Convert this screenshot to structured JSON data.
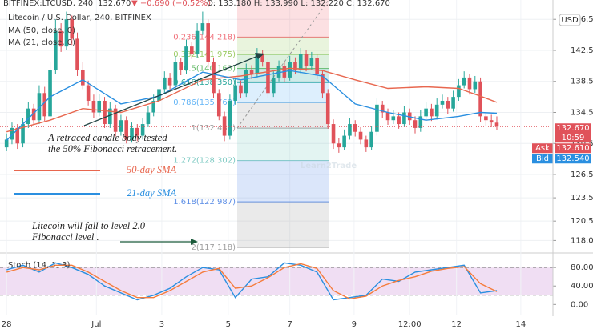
{
  "chart_data": [
    {
      "type": "candlestick",
      "header": [
        "BITFINEX:LTCUSD, 240",
        "132.670",
        "▼ −0.690 (−0.52%)",
        "O: 133.180 H: 133.990 L: 132.220 C: 132.670"
      ],
      "title": "Litecoin / U.S. Dollar, 240, BITFINEX",
      "y_unit": "USD",
      "xlim": [
        -1.2,
        100.3
      ],
      "ylim": [
        116.7,
        149
      ],
      "yticks": [
        {
          "value": 118,
          "label": "118.000"
        },
        {
          "value": 120.5,
          "label": "120.500"
        },
        {
          "value": 123.5,
          "label": "123.500"
        },
        {
          "value": 126.5,
          "label": "126.500"
        },
        {
          "value": 130.5,
          "label": "130.500"
        },
        {
          "value": 134.5,
          "label": "134.500"
        },
        {
          "value": 138.5,
          "label": "138.500"
        },
        {
          "value": 142.5,
          "label": "142.500"
        },
        {
          "value": 146.5,
          "label": "146.500"
        }
      ],
      "grid": true,
      "up_color": "#26a69a",
      "down_color": "#e0525a",
      "x": [
        0,
        1,
        2,
        3,
        4,
        5,
        6,
        7,
        8,
        9,
        10,
        11,
        12,
        13,
        14,
        15,
        16,
        17,
        18,
        19,
        20,
        21,
        22,
        23,
        24,
        25,
        26,
        27,
        28,
        29,
        30,
        31,
        32,
        33,
        34,
        35,
        36,
        37,
        38,
        39,
        40,
        41,
        42,
        43,
        44,
        45,
        46,
        47,
        48,
        49,
        50,
        51,
        52,
        53,
        54,
        55,
        56,
        57,
        58,
        59,
        60,
        61,
        62,
        63,
        64,
        65,
        66,
        67,
        68,
        69,
        70,
        71,
        72,
        73,
        74,
        75,
        76,
        77,
        78,
        79,
        80,
        81,
        82,
        83,
        84,
        85,
        86,
        87,
        88,
        89,
        90
      ],
      "candles": [
        [
          130,
          131.8,
          129.5,
          131
        ],
        [
          131,
          133.2,
          130.4,
          132.5
        ],
        [
          132.5,
          133,
          129.8,
          130.5
        ],
        [
          130.5,
          133.8,
          130,
          133
        ],
        [
          133,
          135.8,
          132.5,
          135
        ],
        [
          135,
          135.6,
          133,
          133.5
        ],
        [
          133.5,
          138,
          133,
          137
        ],
        [
          137,
          137.8,
          133.4,
          134
        ],
        [
          134,
          141,
          133.5,
          140
        ],
        [
          140,
          146.5,
          139.5,
          145
        ],
        [
          145,
          146,
          142.3,
          143
        ],
        [
          143,
          147.5,
          142.5,
          146.5
        ],
        [
          146.5,
          147,
          143.2,
          144
        ],
        [
          144,
          144.8,
          139.2,
          140
        ],
        [
          140,
          141,
          137.5,
          138
        ],
        [
          138,
          138.6,
          135.4,
          136
        ],
        [
          136,
          136.8,
          133.8,
          134.5
        ],
        [
          134.5,
          136.9,
          134,
          136
        ],
        [
          136,
          136.5,
          132.5,
          133
        ],
        [
          133,
          135.8,
          132.5,
          135
        ],
        [
          135,
          135.5,
          131.4,
          132
        ],
        [
          132,
          134.2,
          131.5,
          133.5
        ],
        [
          133.5,
          134,
          130.5,
          131
        ],
        [
          131,
          133.2,
          130.6,
          132.5
        ],
        [
          132.5,
          133,
          130.8,
          131.5
        ],
        [
          131.5,
          133.8,
          131,
          133
        ],
        [
          133,
          135.3,
          132.6,
          134.5
        ],
        [
          134.5,
          136.8,
          134,
          136
        ],
        [
          136,
          138.3,
          135.5,
          137.5
        ],
        [
          137.5,
          139.8,
          137,
          139
        ],
        [
          139,
          139.6,
          137.3,
          138
        ],
        [
          138,
          141.8,
          137.6,
          141
        ],
        [
          141,
          141.5,
          139.3,
          140
        ],
        [
          140,
          143.9,
          139.5,
          143
        ],
        [
          143,
          143.6,
          141.4,
          142
        ],
        [
          142,
          146,
          141.5,
          145
        ],
        [
          145,
          147.5,
          144.5,
          146
        ],
        [
          146,
          146.5,
          140.3,
          141
        ],
        [
          141,
          141.6,
          136.4,
          137
        ],
        [
          137,
          137.5,
          133.5,
          134
        ],
        [
          134,
          134.6,
          130.8,
          131.5
        ],
        [
          131.5,
          136.8,
          131,
          136
        ],
        [
          136,
          138.9,
          135.5,
          138
        ],
        [
          138,
          138.6,
          136.3,
          137
        ],
        [
          137,
          140.8,
          136.5,
          140
        ],
        [
          140,
          140.6,
          138.8,
          139.5
        ],
        [
          139.5,
          142.8,
          139,
          142
        ],
        [
          142,
          142.6,
          140.4,
          141
        ],
        [
          141,
          141.5,
          136.3,
          137
        ],
        [
          137,
          139.8,
          136.5,
          139
        ],
        [
          139,
          141.2,
          138.5,
          140.5
        ],
        [
          140.5,
          141,
          138.4,
          139
        ],
        [
          139,
          141.8,
          138.6,
          141
        ],
        [
          141,
          141.6,
          139.4,
          140
        ],
        [
          140,
          142.8,
          139.5,
          142
        ],
        [
          142,
          142.5,
          139.8,
          140.5
        ],
        [
          140.5,
          142.3,
          140,
          141.5
        ],
        [
          141.5,
          142,
          138.8,
          139.5
        ],
        [
          139.5,
          140,
          136.3,
          137
        ],
        [
          137,
          137.5,
          132.4,
          133
        ],
        [
          133,
          133.6,
          129.8,
          130.5
        ],
        [
          130.5,
          131.2,
          129.3,
          130
        ],
        [
          130,
          132.3,
          129.6,
          131.5
        ],
        [
          131.5,
          133.8,
          131,
          133
        ],
        [
          133,
          133.5,
          131.4,
          132
        ],
        [
          132,
          132.6,
          130.4,
          131
        ],
        [
          131,
          131.5,
          129.4,
          130
        ],
        [
          130,
          132.8,
          129.6,
          132
        ],
        [
          132,
          136.3,
          131.5,
          135.5
        ],
        [
          135.5,
          136,
          133.8,
          134.5
        ],
        [
          134.5,
          135,
          132.9,
          133.5
        ],
        [
          133.5,
          134.8,
          133,
          134
        ],
        [
          134,
          134.5,
          132.4,
          133
        ],
        [
          133,
          135.3,
          132.6,
          134.5
        ],
        [
          134.5,
          135,
          132.9,
          133.5
        ],
        [
          133.5,
          134,
          131.8,
          132.5
        ],
        [
          132.5,
          134.8,
          132,
          134
        ],
        [
          134,
          135.8,
          133.6,
          135
        ],
        [
          135,
          135.6,
          133.4,
          134
        ],
        [
          134,
          136.3,
          133.6,
          135.5
        ],
        [
          135.5,
          136.8,
          135,
          136
        ],
        [
          136,
          136.5,
          134.3,
          135
        ],
        [
          135,
          137.3,
          134.6,
          136.5
        ],
        [
          136.5,
          138.8,
          136,
          138
        ],
        [
          138,
          139.8,
          137.6,
          139
        ],
        [
          139,
          139.5,
          136.8,
          137.5
        ],
        [
          137.5,
          139.2,
          137,
          138.5
        ],
        [
          138.5,
          139,
          133.3,
          134
        ],
        [
          134,
          134.5,
          132.8,
          133.5
        ],
        [
          133.5,
          134.2,
          132.6,
          133.2
        ],
        [
          133.18,
          133.99,
          132.22,
          132.67
        ]
      ],
      "series": [
        {
          "name": "MA (50, close, 0)",
          "color": "#e8674f",
          "x": [
            0,
            8,
            14,
            21,
            28,
            36,
            43,
            52,
            58,
            64,
            70,
            77,
            83,
            87,
            90
          ],
          "values": [
            132,
            133.5,
            135,
            134.5,
            136,
            138.7,
            139.2,
            140.2,
            139.9,
            138.7,
            137.6,
            137.8,
            137.6,
            136.6,
            135.8
          ]
        },
        {
          "name": "MA (21, close, 0)",
          "color": "#2a8fe0",
          "x": [
            0,
            8,
            14,
            21,
            28,
            36,
            43,
            52,
            58,
            64,
            70,
            77,
            83,
            87,
            90
          ],
          "values": [
            130.9,
            136.5,
            138.7,
            135.6,
            136.6,
            139.7,
            138.7,
            139.9,
            139.2,
            135.6,
            134.5,
            133.5,
            134,
            134.5,
            134.4
          ]
        }
      ],
      "fib_levels": [
        {
          "value": 144.218,
          "label": "0.236(144.218)",
          "color": "#f0707a"
        },
        {
          "value": 141.975,
          "label": "0.382(141.975)",
          "color": "#9ccc65"
        },
        {
          "value": 140.163,
          "label": "0.5(140.163)",
          "color": "#66bb6a"
        },
        {
          "value": 138.35,
          "label": "0.618(138.350)",
          "color": "#26a69a"
        },
        {
          "value": 135.769,
          "label": "0.786(135.769)",
          "color": "#64b5f6"
        },
        {
          "value": 132.481,
          "label": "1(132.481)",
          "color": "#9e9e9e"
        },
        {
          "value": 128.302,
          "label": "1.272(128.302)",
          "color": "#80cbc4"
        },
        {
          "value": 122.987,
          "label": "1.618(122.987)",
          "color": "#5c8ee6"
        },
        {
          "value": 117.118,
          "label": "2(117.118)",
          "color": "#9e9e9e"
        }
      ],
      "annotations": [
        "A retraced candle body tested",
        "the 50% Fibonacci retracement.",
        "Litecoin will fall to level 2.0",
        "Fibonacci level ."
      ],
      "sma_legend": [
        {
          "name": "50-day SMA",
          "color": "#e8674f"
        },
        {
          "name": "21-day SMA",
          "color": "#2a8fe0"
        }
      ],
      "watermark": "Learn2Trade",
      "badges": [
        {
          "value": 132.67,
          "label": "132.670",
          "sub": "10:59",
          "color": "#e0525a"
        },
        {
          "tag": "Ask",
          "value": 132.61,
          "label": "132.610",
          "color": "#e0525a"
        },
        {
          "tag": "Bid",
          "value": 132.54,
          "label": "132.540",
          "color": "#2a8fe0"
        }
      ]
    },
    {
      "type": "line",
      "title": "Stoch (14, 1, 3)",
      "xlim": [
        -1.2,
        100.3
      ],
      "ylim": [
        -22,
        108
      ],
      "yticks": [
        {
          "value": 0,
          "label": "0.00"
        },
        {
          "value": 40,
          "label": "40.00"
        },
        {
          "value": 80,
          "label": "80.00"
        }
      ],
      "xticks": [
        {
          "value": 0,
          "label": "28"
        },
        {
          "value": 16.5,
          "label": "Jul"
        },
        {
          "value": 28.5,
          "label": "3"
        },
        {
          "value": 40.7,
          "label": "5"
        },
        {
          "value": 52,
          "label": "7"
        },
        {
          "value": 63.8,
          "label": "9"
        },
        {
          "value": 74,
          "label": "12:00"
        },
        {
          "value": 82.6,
          "label": "12"
        },
        {
          "value": 94.4,
          "label": "14"
        }
      ],
      "band": [
        20,
        80
      ],
      "band_color": "#e1bee7",
      "series": [
        {
          "color": "#2a8fe0",
          "x": [
            0,
            3,
            6,
            9,
            12,
            15,
            18,
            21,
            24,
            27,
            30,
            33,
            36,
            39,
            42,
            45,
            48,
            51,
            54,
            57,
            60,
            63,
            66,
            69,
            72,
            75,
            78,
            81,
            84,
            87,
            90
          ],
          "values": [
            75,
            85,
            70,
            90,
            80,
            65,
            40,
            25,
            10,
            20,
            35,
            60,
            80,
            75,
            15,
            55,
            60,
            90,
            85,
            70,
            10,
            15,
            20,
            55,
            50,
            70,
            75,
            80,
            85,
            25,
            30
          ]
        },
        {
          "color": "#f57c3c",
          "x": [
            0,
            3,
            6,
            9,
            12,
            15,
            18,
            21,
            24,
            27,
            30,
            33,
            36,
            39,
            42,
            45,
            48,
            51,
            54,
            57,
            60,
            63,
            66,
            69,
            72,
            75,
            78,
            81,
            84,
            87,
            90
          ],
          "values": [
            70,
            80,
            75,
            85,
            85,
            70,
            50,
            30,
            15,
            15,
            30,
            50,
            70,
            78,
            35,
            40,
            58,
            80,
            88,
            78,
            30,
            12,
            18,
            40,
            52,
            60,
            72,
            78,
            82,
            45,
            28
          ]
        }
      ]
    }
  ]
}
